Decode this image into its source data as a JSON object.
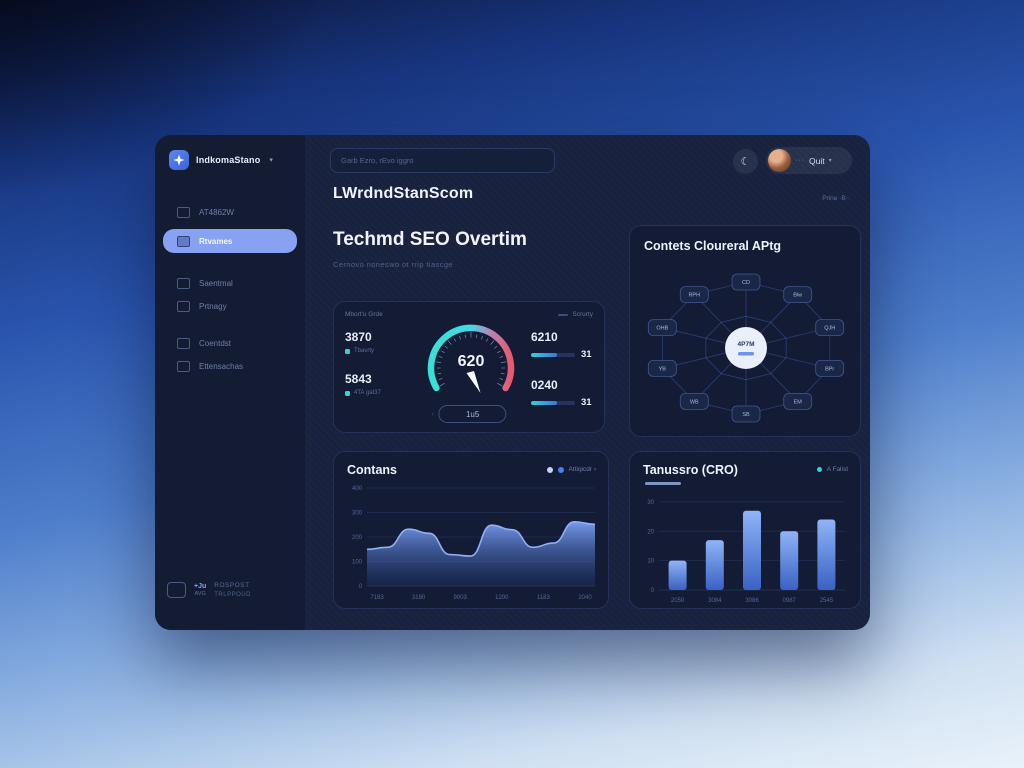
{
  "app": {
    "logo_text": "IndkomaStano",
    "logo_chevron": "▾"
  },
  "sidebar": {
    "items": [
      {
        "label": "AT4862W",
        "active": false
      },
      {
        "label": "Rtvames",
        "active": true
      },
      {
        "label": "Saentmal",
        "active": false
      },
      {
        "label": "Prtnagy",
        "active": false
      },
      {
        "label": "Coentdst",
        "active": false
      },
      {
        "label": "Ettensachas",
        "active": false
      }
    ],
    "footer": {
      "badge": "+Ju",
      "badge_sub": "AVG",
      "line1": "ROSPOST",
      "line2": "TRLPPOUD"
    }
  },
  "header": {
    "search_placeholder": "Garb Ezro, rEvo iggro",
    "user_menu": {
      "dots": "···",
      "label": "Quit",
      "chevron": "▾"
    },
    "subtext": "Prine ·B··",
    "page_title": "LWrdndStanScom"
  },
  "main": {
    "section_title": "Techmd SEO Overtim",
    "section_subtitle": "Cernovo noneswo ot rrip tiascge"
  },
  "cards": {
    "gauge": {
      "title": "Mbort'u Grde",
      "right_label": "Scrurty",
      "left_stats": [
        {
          "value": "3870",
          "label": "Tbavrty"
        },
        {
          "value": "5843",
          "label": "4TA gat37"
        }
      ],
      "right_stats": [
        {
          "value": "6210",
          "bar_value": "31"
        },
        {
          "value": "0240",
          "bar_value": "31"
        }
      ],
      "button_label": "1u5",
      "button_arrow": "‹"
    },
    "radar": {
      "title": "Contets Cloureral APtg"
    },
    "area": {
      "title": "Contans",
      "legend_label": "Attiqicdr ›"
    },
    "bar": {
      "title": "Tanussro (CRO)",
      "legend_label": "A Falist"
    }
  },
  "chart_data": [
    {
      "type": "gauge",
      "title": "Mbort'u Grde",
      "value": 620,
      "min": 0,
      "max": 1000,
      "arc_colors": [
        "#3ae0d4",
        "#46d8e4",
        "#e8596e"
      ]
    },
    {
      "type": "radar",
      "title": "Contets Cloureral APtg",
      "center_label": "4P7M",
      "nodes": [
        "CD",
        "Blw",
        "QJH",
        "BPr",
        "EM",
        "SB",
        "WB",
        "YB",
        "OHB",
        "RPH"
      ]
    },
    {
      "type": "area",
      "title": "Contans",
      "x_labels": [
        "7183",
        "3180",
        "9003",
        "1200",
        "1183",
        "2040"
      ],
      "y_ticks": [
        400,
        300,
        200,
        100,
        0
      ],
      "ylim": [
        0,
        400
      ],
      "values": [
        150,
        158,
        232,
        215,
        128,
        122,
        248,
        230,
        158,
        175,
        262,
        252
      ],
      "grid": true,
      "legend_position": "top-right"
    },
    {
      "type": "bar",
      "title": "Tanussro (CRO)",
      "categories": [
        "2050",
        "3084",
        "3086",
        "0987",
        "2545"
      ],
      "values": [
        10,
        17,
        27,
        20,
        24
      ],
      "y_ticks": [
        30,
        20,
        10,
        0
      ],
      "ylim": [
        0,
        32
      ],
      "grid": true,
      "legend_position": "top-right"
    }
  ]
}
